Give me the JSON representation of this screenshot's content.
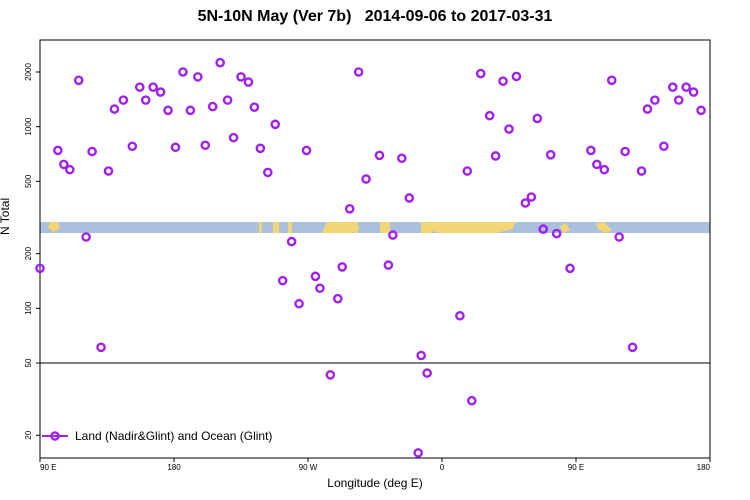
{
  "chart_data": {
    "type": "scatter",
    "title": "5N-10N May (Ver 7b)   2014-09-06 to 2017-03-31",
    "xlabel": "Longitude (deg E)",
    "ylabel": "N Total",
    "y_scale": "log",
    "xlim": [
      90,
      540
    ],
    "ylim": [
      15,
      3000
    ],
    "x_ticks": [
      {
        "value": 90,
        "label": "90 E"
      },
      {
        "value": 180,
        "label": "180"
      },
      {
        "value": 270,
        "label": "90 W"
      },
      {
        "value": 360,
        "label": "0"
      },
      {
        "value": 450,
        "label": "90 E"
      },
      {
        "value": 540,
        "label": "180"
      }
    ],
    "y_ticks": [
      {
        "value": 20,
        "label": "20"
      },
      {
        "value": 50,
        "label": "50"
      },
      {
        "value": 100,
        "label": "100"
      },
      {
        "value": 200,
        "label": "200"
      },
      {
        "value": 500,
        "label": "500"
      },
      {
        "value": 1000,
        "label": "1000"
      },
      {
        "value": 2000,
        "label": "2000"
      }
    ],
    "reference_line": 50,
    "land_ocean_strip": {
      "colors": {
        "ocean": "#aac0dc",
        "land": "#f2d675"
      }
    },
    "series": [
      {
        "name": "Land (Nadir&Glint) and Ocean (Glint)",
        "color": "#a020f0",
        "points": [
          {
            "x": 90,
            "y": 166
          },
          {
            "x": 102,
            "y": 740
          },
          {
            "x": 106,
            "y": 620
          },
          {
            "x": 110,
            "y": 580
          },
          {
            "x": 116,
            "y": 1800
          },
          {
            "x": 121,
            "y": 247
          },
          {
            "x": 125,
            "y": 730
          },
          {
            "x": 131,
            "y": 61
          },
          {
            "x": 136,
            "y": 570
          },
          {
            "x": 140,
            "y": 1250
          },
          {
            "x": 146,
            "y": 1400
          },
          {
            "x": 152,
            "y": 780
          },
          {
            "x": 157,
            "y": 1650
          },
          {
            "x": 161,
            "y": 1400
          },
          {
            "x": 166,
            "y": 1650
          },
          {
            "x": 171,
            "y": 1550
          },
          {
            "x": 176,
            "y": 1230
          },
          {
            "x": 181,
            "y": 770
          },
          {
            "x": 186,
            "y": 2000
          },
          {
            "x": 191,
            "y": 1230
          },
          {
            "x": 196,
            "y": 1880
          },
          {
            "x": 201,
            "y": 790
          },
          {
            "x": 206,
            "y": 1290
          },
          {
            "x": 211,
            "y": 2250
          },
          {
            "x": 216,
            "y": 1400
          },
          {
            "x": 220,
            "y": 870
          },
          {
            "x": 225,
            "y": 1880
          },
          {
            "x": 230,
            "y": 1760
          },
          {
            "x": 234,
            "y": 1280
          },
          {
            "x": 238,
            "y": 760
          },
          {
            "x": 243,
            "y": 560
          },
          {
            "x": 248,
            "y": 1030
          },
          {
            "x": 253,
            "y": 142
          },
          {
            "x": 259,
            "y": 233
          },
          {
            "x": 264,
            "y": 106
          },
          {
            "x": 269,
            "y": 740
          },
          {
            "x": 275,
            "y": 150
          },
          {
            "x": 278,
            "y": 129
          },
          {
            "x": 285,
            "y": 43
          },
          {
            "x": 290,
            "y": 113
          },
          {
            "x": 293,
            "y": 169
          },
          {
            "x": 298,
            "y": 353
          },
          {
            "x": 304,
            "y": 2000
          },
          {
            "x": 309,
            "y": 515
          },
          {
            "x": 318,
            "y": 695
          },
          {
            "x": 324,
            "y": 173
          },
          {
            "x": 327,
            "y": 253
          },
          {
            "x": 333,
            "y": 670
          },
          {
            "x": 338,
            "y": 405
          },
          {
            "x": 344,
            "y": 16
          },
          {
            "x": 346,
            "y": 55
          },
          {
            "x": 350,
            "y": 44
          },
          {
            "x": 372,
            "y": 91
          },
          {
            "x": 377,
            "y": 570
          },
          {
            "x": 380,
            "y": 31
          },
          {
            "x": 386,
            "y": 1960
          },
          {
            "x": 392,
            "y": 1150
          },
          {
            "x": 396,
            "y": 690
          },
          {
            "x": 401,
            "y": 1780
          },
          {
            "x": 405,
            "y": 970
          },
          {
            "x": 410,
            "y": 1890
          },
          {
            "x": 416,
            "y": 380
          },
          {
            "x": 420,
            "y": 410
          },
          {
            "x": 424,
            "y": 1110
          },
          {
            "x": 428,
            "y": 273
          },
          {
            "x": 433,
            "y": 700
          },
          {
            "x": 437,
            "y": 258
          },
          {
            "x": 446,
            "y": 166
          },
          {
            "x": 460,
            "y": 740
          },
          {
            "x": 464,
            "y": 620
          },
          {
            "x": 469,
            "y": 580
          },
          {
            "x": 474,
            "y": 1800
          },
          {
            "x": 479,
            "y": 247
          },
          {
            "x": 483,
            "y": 730
          },
          {
            "x": 488,
            "y": 61
          },
          {
            "x": 494,
            "y": 570
          },
          {
            "x": 498,
            "y": 1250
          },
          {
            "x": 503,
            "y": 1400
          },
          {
            "x": 509,
            "y": 780
          },
          {
            "x": 515,
            "y": 1650
          },
          {
            "x": 519,
            "y": 1400
          },
          {
            "x": 524,
            "y": 1650
          },
          {
            "x": 529,
            "y": 1550
          },
          {
            "x": 534,
            "y": 1230
          }
        ]
      }
    ]
  }
}
